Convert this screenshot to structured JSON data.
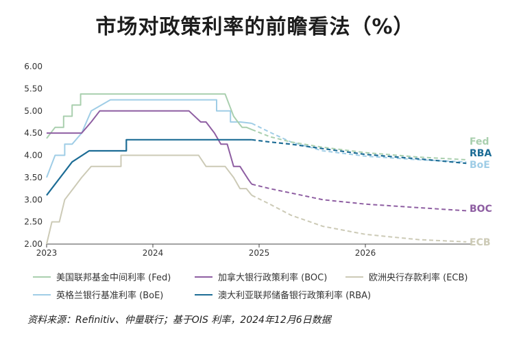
{
  "title": "市场对政策利率的前瞻看法（%）",
  "source_note": "资料来源：Refinitiv、仲量联行；基于OIS 利率，2024年12月6日数据",
  "chart_data": {
    "type": "line",
    "title": "市场对政策利率的前瞻看法（%）",
    "xlabel": "",
    "ylabel": "",
    "xlim": [
      2023.0,
      2027.0
    ],
    "ylim": [
      2.0,
      6.0
    ],
    "x_ticks": [
      {
        "value": 2023,
        "label": "2023"
      },
      {
        "value": 2024,
        "label": "2024"
      },
      {
        "value": 2025,
        "label": "2025"
      },
      {
        "value": 2026,
        "label": "2026"
      }
    ],
    "y_ticks": [
      "2.00",
      "2.50",
      "3.00",
      "3.50",
      "4.00",
      "4.50",
      "5.00",
      "5.50",
      "6.00"
    ],
    "grid": "none",
    "legend_position": "bottom",
    "forecast_start": 2024.93,
    "series": [
      {
        "name": "美国联邦基金中间利率 (Fed)",
        "end_label": "Fed",
        "color": "#a9cfae",
        "x": [
          2023.0,
          2023.08,
          2023.08,
          2023.16,
          2023.16,
          2023.24,
          2023.24,
          2023.32,
          2023.32,
          2023.4,
          2023.4,
          2023.58,
          2023.58,
          2024.68,
          2024.68,
          2024.72,
          2024.76,
          2024.8,
          2024.84,
          2024.88,
          2024.93
        ],
        "y": [
          4.38,
          4.63,
          4.63,
          4.63,
          4.88,
          4.88,
          5.13,
          5.13,
          5.38,
          5.38,
          5.38,
          5.38,
          5.38,
          5.38,
          5.38,
          5.13,
          4.88,
          4.75,
          4.63,
          4.63,
          4.58
        ],
        "forecast_x": [
          2024.93,
          2025.1,
          2025.3,
          2025.6,
          2026.0,
          2026.5,
          2026.95
        ],
        "forecast_y": [
          4.58,
          4.42,
          4.3,
          4.18,
          4.06,
          3.96,
          3.9
        ]
      },
      {
        "name": "加拿大银行政策利率 (BOC)",
        "color": "#8e5ea2",
        "x": [
          2023.0,
          2023.33,
          2023.42,
          2023.42,
          2023.5,
          2023.5,
          2024.34,
          2024.34,
          2024.45,
          2024.5,
          2024.5,
          2024.58,
          2024.58,
          2024.64,
          2024.64,
          2024.7,
          2024.76,
          2024.76,
          2024.82,
          2024.86,
          2024.9,
          2024.93
        ],
        "y": [
          4.5,
          4.5,
          4.75,
          4.75,
          5.0,
          5.0,
          5.0,
          5.0,
          4.75,
          4.75,
          4.75,
          4.5,
          4.5,
          4.25,
          4.25,
          4.25,
          3.75,
          3.75,
          3.75,
          3.6,
          3.45,
          3.35
        ],
        "forecast_x": [
          2024.93,
          2025.1,
          2025.3,
          2025.6,
          2026.0,
          2026.5,
          2026.95
        ],
        "forecast_y": [
          3.35,
          3.25,
          3.15,
          3.0,
          2.9,
          2.82,
          2.75
        ]
      },
      {
        "name": "欧洲央行存款利率 (ECB)",
        "end_label": "ECB",
        "color": "#cccab6",
        "x": [
          2023.0,
          2023.05,
          2023.05,
          2023.12,
          2023.17,
          2023.17,
          2023.25,
          2023.33,
          2023.42,
          2023.5,
          2023.5,
          2023.7,
          2023.7,
          2024.43,
          2024.43,
          2024.5,
          2024.68,
          2024.68,
          2024.76,
          2024.82,
          2024.88,
          2024.93
        ],
        "y": [
          2.0,
          2.5,
          2.5,
          2.5,
          3.0,
          3.0,
          3.25,
          3.5,
          3.75,
          3.75,
          3.75,
          3.75,
          4.0,
          4.0,
          4.0,
          3.75,
          3.75,
          3.75,
          3.5,
          3.25,
          3.25,
          3.1
        ],
        "forecast_x": [
          2024.93,
          2025.1,
          2025.3,
          2025.6,
          2026.0,
          2026.5,
          2026.95
        ],
        "forecast_y": [
          3.1,
          2.9,
          2.65,
          2.4,
          2.22,
          2.1,
          2.05
        ]
      },
      {
        "name": "英格兰银行基准利率 (BoE)",
        "end_label": "BoE",
        "color": "#9fcde6",
        "x": [
          2023.0,
          2023.08,
          2023.08,
          2023.17,
          2023.17,
          2023.24,
          2023.24,
          2023.33,
          2023.42,
          2023.42,
          2023.6,
          2023.6,
          2024.6,
          2024.6,
          2024.73,
          2024.73,
          2024.82,
          2024.93
        ],
        "y": [
          3.5,
          4.0,
          4.0,
          4.0,
          4.25,
          4.25,
          4.25,
          4.5,
          5.0,
          5.0,
          5.25,
          5.25,
          5.25,
          5.0,
          5.0,
          4.75,
          4.75,
          4.72
        ],
        "forecast_x": [
          2024.93,
          2025.1,
          2025.3,
          2025.6,
          2026.0,
          2026.5,
          2026.95
        ],
        "forecast_y": [
          4.72,
          4.52,
          4.3,
          4.1,
          3.98,
          3.9,
          3.85
        ]
      },
      {
        "name": "澳大利亚联邦储备银行政策利率 (RBA)",
        "end_label": "RBA",
        "color": "#1c6c95",
        "x": [
          2023.0,
          2023.08,
          2023.08,
          2023.16,
          2023.16,
          2023.24,
          2023.24,
          2023.4,
          2023.4,
          2023.75,
          2023.75,
          2024.93
        ],
        "y": [
          3.1,
          3.35,
          3.35,
          3.6,
          3.6,
          3.85,
          3.85,
          4.1,
          4.1,
          4.1,
          4.35,
          4.35
        ],
        "forecast_x": [
          2024.93,
          2025.1,
          2025.3,
          2025.6,
          2026.0,
          2026.5,
          2026.95
        ],
        "forecast_y": [
          4.35,
          4.3,
          4.25,
          4.15,
          4.02,
          3.92,
          3.82
        ]
      }
    ]
  }
}
